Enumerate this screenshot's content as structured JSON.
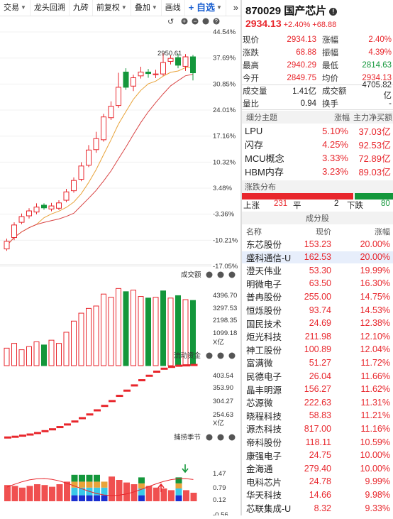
{
  "toolbar": {
    "items": [
      "交易",
      "龙头回溯",
      "九砖",
      "前复权",
      "叠加",
      "画线"
    ],
    "add_label": "+ 自选",
    "more": "»"
  },
  "chart": {
    "price_ticks": [
      "44.54%",
      "37.69%",
      "30.85%",
      "24.01%",
      "17.16%",
      "10.32%",
      "3.48%",
      "-3.36%",
      "-10.21%",
      "-17.05%"
    ],
    "peak_label": "2950.61",
    "volume_title": "成交额",
    "volume_ticks": [
      "4396.70",
      "3297.53",
      "2198.35",
      "1099.18",
      "X亿"
    ],
    "flow_title": "流动资金",
    "flow_ticks": [
      "403.54",
      "353.90",
      "304.27",
      "254.63",
      "X亿"
    ],
    "capture_title": "捕捞季节",
    "capture_ticks": [
      "1.47",
      "0.79",
      "0.12",
      "-0.56"
    ],
    "candles": [
      {
        "o": -12.5,
        "c": -10.5,
        "h": -9.8,
        "l": -13.0,
        "up": true
      },
      {
        "o": -9.5,
        "c": -6.2,
        "h": -5.5,
        "l": -10.2,
        "up": true
      },
      {
        "o": -5.5,
        "c": -4.0,
        "h": -3.2,
        "l": -6.0,
        "up": true
      },
      {
        "o": -3.8,
        "c": -2.5,
        "h": -1.8,
        "l": -4.5,
        "up": true
      },
      {
        "o": -2.8,
        "c": -1.5,
        "h": -0.5,
        "l": -3.4,
        "up": true
      },
      {
        "o": -1.0,
        "c": -1.7,
        "h": -0.5,
        "l": -2.2,
        "up": false
      },
      {
        "o": -2.0,
        "c": -1.2,
        "h": -0.4,
        "l": -2.6,
        "up": true
      },
      {
        "o": -1.8,
        "c": -0.4,
        "h": 0.3,
        "l": -2.3,
        "up": true
      },
      {
        "o": 0.3,
        "c": 2.5,
        "h": 3.3,
        "l": -0.2,
        "up": true
      },
      {
        "o": 2.8,
        "c": 5.5,
        "h": 6.3,
        "l": 2.3,
        "up": true
      },
      {
        "o": 5.8,
        "c": 9.3,
        "h": 10.3,
        "l": 5.3,
        "up": true
      },
      {
        "o": 9.5,
        "c": 13.5,
        "h": 14.8,
        "l": 9.0,
        "up": true
      },
      {
        "o": 13.6,
        "c": 16.5,
        "h": 18.3,
        "l": 12.8,
        "up": true
      },
      {
        "o": 16.2,
        "c": 22.2,
        "h": 23.0,
        "l": 15.7,
        "up": true
      },
      {
        "o": 22.0,
        "c": 25.0,
        "h": 26.3,
        "l": 21.4,
        "up": true
      },
      {
        "o": 25.2,
        "c": 30.0,
        "h": 33.8,
        "l": 24.6,
        "up": true
      },
      {
        "o": 34.0,
        "c": 30.0,
        "h": 35.0,
        "l": 29.3,
        "up": false
      },
      {
        "o": 30.3,
        "c": 32.5,
        "h": 33.3,
        "l": 29.0,
        "up": true
      },
      {
        "o": 33.0,
        "c": 34.0,
        "h": 35.4,
        "l": 32.3,
        "up": true
      },
      {
        "o": 34.0,
        "c": 33.6,
        "h": 34.8,
        "l": 32.5,
        "up": false
      },
      {
        "o": 33.3,
        "c": 33.5,
        "h": 34.6,
        "l": 32.4,
        "up": true
      },
      {
        "o": 33.5,
        "c": 36.5,
        "h": 39.0,
        "l": 33.0,
        "up": true
      },
      {
        "o": 36.8,
        "c": 37.6,
        "h": 38.4,
        "l": 36.0,
        "up": true
      },
      {
        "o": 37.8,
        "c": 35.8,
        "h": 38.8,
        "l": 35.0,
        "up": false
      },
      {
        "o": 35.5,
        "c": 38.0,
        "h": 38.7,
        "l": 34.3,
        "up": true
      },
      {
        "o": 38.0,
        "c": 33.8,
        "h": 38.5,
        "l": 31.8,
        "up": false
      }
    ],
    "volume_bars": [
      {
        "v": 0.22,
        "up": true
      },
      {
        "v": 0.28,
        "up": true
      },
      {
        "v": 0.2,
        "up": true
      },
      {
        "v": 0.24,
        "up": true
      },
      {
        "v": 0.3,
        "up": true
      },
      {
        "v": 0.26,
        "up": false
      },
      {
        "v": 0.32,
        "up": true
      },
      {
        "v": 0.28,
        "up": true
      },
      {
        "v": 0.42,
        "up": true
      },
      {
        "v": 0.56,
        "up": true
      },
      {
        "v": 0.66,
        "up": true
      },
      {
        "v": 0.72,
        "up": true
      },
      {
        "v": 0.75,
        "up": true
      },
      {
        "v": 0.9,
        "up": true
      },
      {
        "v": 0.86,
        "up": true
      },
      {
        "v": 0.97,
        "up": true
      },
      {
        "v": 0.93,
        "up": false
      },
      {
        "v": 0.95,
        "up": true
      },
      {
        "v": 0.87,
        "up": true
      },
      {
        "v": 0.85,
        "up": false
      },
      {
        "v": 0.86,
        "up": true
      },
      {
        "v": 0.94,
        "up": false
      },
      {
        "v": 0.85,
        "up": true
      },
      {
        "v": 0.88,
        "up": false
      },
      {
        "v": 0.83,
        "up": true
      },
      {
        "v": 0.82,
        "up": false
      }
    ],
    "flow_values": [
      212,
      214,
      217,
      220,
      224,
      229,
      234,
      240,
      247,
      255,
      264,
      274,
      285,
      297,
      310,
      324,
      338,
      352,
      366,
      378,
      389,
      397,
      402,
      405,
      406,
      407
    ],
    "capture": [
      {
        "red": 0.38,
        "blue": 0,
        "cyan": 0,
        "orange": 0,
        "green": 0
      },
      {
        "red": 0.36,
        "blue": 0,
        "cyan": 0,
        "orange": 0,
        "green": 0
      },
      {
        "red": 0.32,
        "blue": 0,
        "cyan": 0,
        "orange": 0,
        "green": 0
      },
      {
        "red": 0.36,
        "blue": 0,
        "cyan": 0,
        "orange": 0,
        "green": 0
      },
      {
        "red": 0.4,
        "blue": 0,
        "cyan": 0,
        "orange": 0,
        "green": 0
      },
      {
        "red": 0.38,
        "blue": 0,
        "cyan": 0,
        "orange": 0,
        "green": 0
      },
      {
        "red": 0.34,
        "blue": 0,
        "cyan": 0,
        "orange": 0,
        "green": 0
      },
      {
        "red": 0.4,
        "blue": 0,
        "cyan": 0,
        "orange": 0,
        "green": 0
      },
      {
        "red": 0.46,
        "blue": 0,
        "cyan": 0,
        "orange": 0,
        "green": 0
      },
      {
        "red": 0,
        "blue": 0.14,
        "cyan": 0.18,
        "orange": 0.14,
        "green": 0.16
      },
      {
        "red": 0,
        "blue": 0.14,
        "cyan": 0.18,
        "orange": 0.14,
        "green": 0.16
      },
      {
        "red": 0,
        "blue": 0.14,
        "cyan": 0.18,
        "orange": 0.14,
        "green": 0.16
      },
      {
        "red": 0,
        "blue": 0.14,
        "cyan": 0.18,
        "orange": 0.14,
        "green": 0.16
      },
      {
        "red": 0,
        "blue": 0.14,
        "cyan": 0.18,
        "orange": 0.14,
        "green": 0
      },
      {
        "red": 0.58,
        "blue": 0,
        "cyan": 0,
        "orange": 0,
        "green": 0
      },
      {
        "red": 0.5,
        "blue": 0,
        "cyan": 0,
        "orange": 0,
        "green": 0
      },
      {
        "red": 0.44,
        "blue": 0,
        "cyan": 0,
        "orange": 0,
        "green": 0
      },
      {
        "red": 0.4,
        "blue": 0,
        "cyan": 0,
        "orange": 0,
        "green": 0
      },
      {
        "red": 0,
        "blue": 0.14,
        "cyan": 0.16,
        "orange": 0.12,
        "green": 0.14
      },
      {
        "red": 0.36,
        "blue": 0,
        "cyan": 0,
        "orange": 0,
        "green": 0
      },
      {
        "red": 0.32,
        "blue": 0,
        "cyan": 0,
        "orange": 0,
        "green": 0
      },
      {
        "red": 0.3,
        "blue": 0,
        "cyan": 0,
        "orange": 0,
        "green": 0
      },
      {
        "red": 0.26,
        "blue": 0,
        "cyan": 0,
        "orange": 0,
        "green": 0
      },
      {
        "red": 0,
        "blue": 0.14,
        "cyan": 0.16,
        "orange": 0.12,
        "green": 0.14
      },
      {
        "red": 0.26,
        "blue": 0,
        "cyan": 0,
        "orange": 0,
        "green": 0
      },
      {
        "red": 0.2,
        "blue": 0,
        "cyan": 0,
        "orange": 0,
        "green": 0
      }
    ]
  },
  "quote": {
    "code_name": "870029 国产芯片",
    "price": "2934.13",
    "change": "+2.40% +68.88",
    "grid": [
      [
        "现价",
        "2934.13",
        "涨幅",
        "2.40%"
      ],
      [
        "涨跌",
        "68.88",
        "振幅",
        "4.39%"
      ],
      [
        "最高",
        "2940.29",
        "最低",
        "2814.63"
      ],
      [
        "今开",
        "2849.75",
        "均价",
        "2934.13"
      ],
      [
        "成交量",
        "1.41亿",
        "成交额",
        "4705.82亿"
      ],
      [
        "量比",
        "0.94",
        "换手",
        "-"
      ]
    ]
  },
  "themes": {
    "header": [
      "细分主题",
      "涨幅",
      "主力净买额"
    ],
    "rows": [
      [
        "LPU",
        "5.10%",
        "37.03亿"
      ],
      [
        "闪存",
        "4.25%",
        "92.53亿"
      ],
      [
        "MCU概念",
        "3.33%",
        "72.89亿"
      ],
      [
        "HBM内存",
        "3.23%",
        "89.03亿"
      ]
    ]
  },
  "distribution": {
    "title": "涨跌分布",
    "up_label": "上涨",
    "up": 231,
    "flat_label": "平",
    "flat": 2,
    "down_label": "下跌",
    "down": 80
  },
  "components": {
    "title": "成分股",
    "header": [
      "名称",
      "现价",
      "涨幅"
    ],
    "rows": [
      [
        "东芯股份",
        "153.23",
        "20.00%"
      ],
      [
        "盛科通信-U",
        "162.53",
        "20.00%"
      ],
      [
        "澄天伟业",
        "53.30",
        "19.99%"
      ],
      [
        "明微电子",
        "63.50",
        "16.30%"
      ],
      [
        "普冉股份",
        "255.00",
        "14.75%"
      ],
      [
        "恒烁股份",
        "93.74",
        "14.53%"
      ],
      [
        "国民技术",
        "24.69",
        "12.38%"
      ],
      [
        "炬光科技",
        "211.98",
        "12.10%"
      ],
      [
        "神工股份",
        "100.89",
        "12.04%"
      ],
      [
        "富满微",
        "51.27",
        "11.72%"
      ],
      [
        "民德电子",
        "26.04",
        "11.66%"
      ],
      [
        "晶丰明源",
        "156.27",
        "11.62%"
      ],
      [
        "芯源微",
        "222.63",
        "11.31%"
      ],
      [
        "晓程科技",
        "58.83",
        "11.21%"
      ],
      [
        "源杰科技",
        "817.00",
        "11.16%"
      ],
      [
        "帝科股份",
        "118.11",
        "10.59%"
      ],
      [
        "康强电子",
        "24.75",
        "10.00%"
      ],
      [
        "金海通",
        "279.40",
        "10.00%"
      ],
      [
        "电科芯片",
        "24.78",
        "9.99%"
      ],
      [
        "华天科技",
        "14.66",
        "9.98%"
      ],
      [
        "芯联集成-U",
        "8.32",
        "9.33%"
      ]
    ]
  }
}
